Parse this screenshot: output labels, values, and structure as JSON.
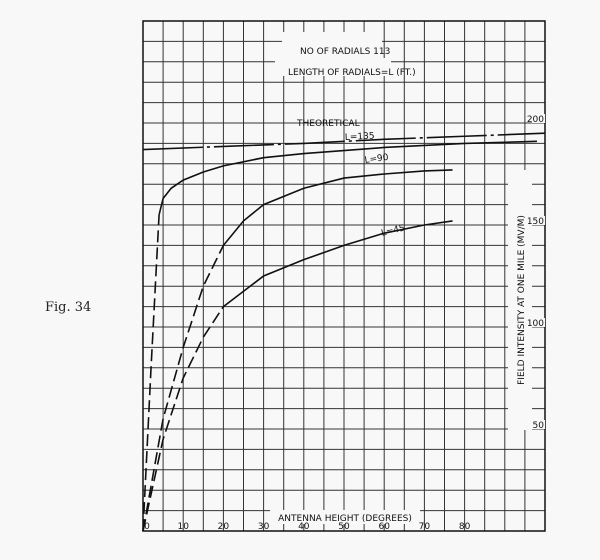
{
  "figure_label": "Fig. 34",
  "chart_data": {
    "type": "line",
    "annotations": [
      "NO OF RADIALS 113",
      "LENGTH OF RADIALS=L   (FT.)"
    ],
    "xlabel": "ANTENNA HEIGHT (DEGREES)",
    "ylabel": "FIELD INTENSITY AT ONE MILE (MV/M)",
    "xlim": [
      0,
      100
    ],
    "ylim": [
      0,
      250
    ],
    "x_ticks": [
      0,
      10,
      20,
      30,
      40,
      50,
      60,
      70,
      80
    ],
    "y_ticks": [
      50,
      100,
      150,
      200
    ],
    "grid": true,
    "grid_step_x": 5,
    "grid_step_y": 10,
    "line_color": "#111111",
    "series": [
      {
        "name": "THEORETICAL",
        "style": "dash-dot",
        "x": [
          0,
          20,
          40,
          60,
          80,
          100
        ],
        "y": [
          187,
          188.5,
          190,
          192,
          193.5,
          195
        ]
      },
      {
        "name": "L=135",
        "dashed_below_x": 4,
        "x": [
          0,
          2,
          4,
          5,
          7,
          10,
          15,
          20,
          30,
          40,
          60,
          80,
          98
        ],
        "y": [
          0,
          80,
          155,
          163,
          168,
          172,
          176,
          179,
          183,
          185,
          188,
          190,
          191
        ]
      },
      {
        "name": "L=90",
        "dashed_below_x": 20,
        "x": [
          0,
          5,
          10,
          15,
          20,
          25,
          30,
          40,
          50,
          60,
          70,
          77
        ],
        "y": [
          0,
          55,
          90,
          120,
          140,
          152,
          160,
          168,
          173,
          175,
          176.5,
          177
        ]
      },
      {
        "name": "L=45",
        "dashed_below_x": 20,
        "x": [
          0,
          5,
          10,
          15,
          20,
          30,
          40,
          50,
          60,
          70,
          77
        ],
        "y": [
          0,
          45,
          75,
          95,
          110,
          125,
          133,
          140,
          146,
          150,
          152
        ]
      }
    ]
  }
}
